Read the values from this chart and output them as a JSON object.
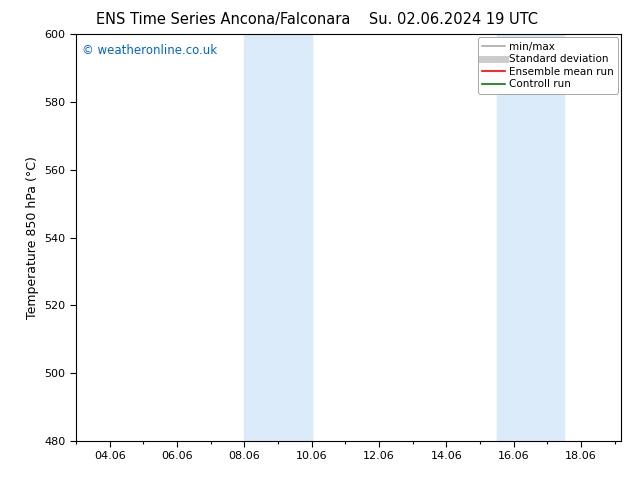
{
  "title_left": "ENS Time Series Ancona/Falconara",
  "title_right": "Su. 02.06.2024 19 UTC",
  "ylabel": "Temperature 850 hPa (°C)",
  "ylim": [
    480,
    600
  ],
  "yticks": [
    480,
    500,
    520,
    540,
    560,
    580,
    600
  ],
  "xlim_start": 3.0,
  "xlim_end": 19.2,
  "xtick_labels": [
    "04.06",
    "06.06",
    "08.06",
    "10.06",
    "12.06",
    "14.06",
    "16.06",
    "18.06"
  ],
  "xtick_positions": [
    4,
    6,
    8,
    10,
    12,
    14,
    16,
    18
  ],
  "shaded_bands": [
    {
      "xmin": 8.0,
      "xmax": 10.0
    },
    {
      "xmin": 15.5,
      "xmax": 17.5
    }
  ],
  "shade_color": "#daeaf8",
  "watermark_text": "© weatheronline.co.uk",
  "watermark_color": "#0066cc",
  "legend_items": [
    {
      "label": "min/max",
      "color": "#aaaaaa",
      "lw": 1.2,
      "style": "solid"
    },
    {
      "label": "Standard deviation",
      "color": "#cccccc",
      "lw": 5,
      "style": "solid"
    },
    {
      "label": "Ensemble mean run",
      "color": "red",
      "lw": 1.2,
      "style": "solid"
    },
    {
      "label": "Controll run",
      "color": "green",
      "lw": 1.2,
      "style": "solid"
    }
  ],
  "bg_color": "#ffffff",
  "plot_bg_color": "#ffffff",
  "tick_color": "#000000",
  "spine_color": "#000000",
  "title_fontsize": 10.5,
  "label_fontsize": 9,
  "tick_fontsize": 8,
  "watermark_fontsize": 8.5,
  "legend_fontsize": 7.5
}
